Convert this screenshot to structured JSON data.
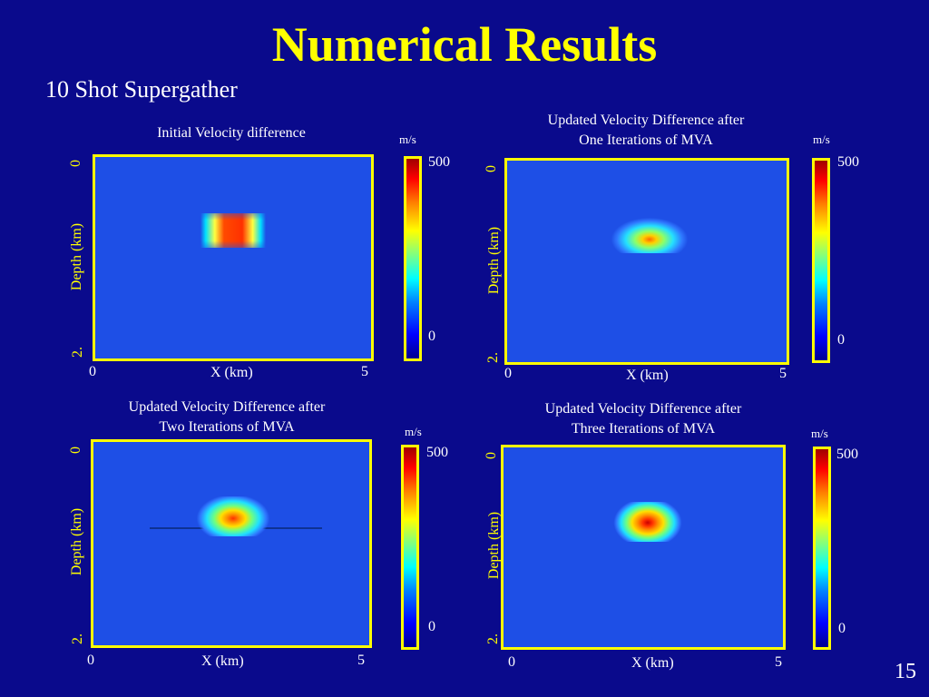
{
  "slide": {
    "title": "Numerical Results",
    "subtitle": "10 Shot Supergather",
    "page_number": "15"
  },
  "panels": [
    {
      "title_line1": "Initial Velocity difference",
      "title_line2": "",
      "ylabel": "Depth (km)",
      "y_top": "0",
      "y_bottom": "2.",
      "xlabel": "X (km)",
      "x_left": "0",
      "x_right": "5",
      "unit": "m/s",
      "cbar_max": "500",
      "cbar_min": "0"
    },
    {
      "title_line1": "Updated Velocity Difference after",
      "title_line2": "One Iterations of MVA",
      "ylabel": "Depth (km)",
      "y_top": "0",
      "y_bottom": "2.",
      "xlabel": "X (km)",
      "x_left": "0",
      "x_right": "5",
      "unit": "m/s",
      "cbar_max": "500",
      "cbar_min": "0"
    },
    {
      "title_line1": "Updated Velocity Difference after",
      "title_line2": "Two Iterations of MVA",
      "ylabel": "Depth (km)",
      "y_top": "0",
      "y_bottom": "2.",
      "xlabel": "X (km)",
      "x_left": "0",
      "x_right": "5",
      "unit": "m/s",
      "cbar_max": "500",
      "cbar_min": "0"
    },
    {
      "title_line1": "Updated Velocity Difference after",
      "title_line2": "Three Iterations of MVA",
      "ylabel": "Depth (km)",
      "y_top": "0",
      "y_bottom": "2.",
      "xlabel": "X (km)",
      "x_left": "0",
      "x_right": "5",
      "unit": "m/s",
      "cbar_max": "500",
      "cbar_min": "0"
    }
  ],
  "colors": {
    "background": "#0a0a8c",
    "title": "#ffff00",
    "frame": "#ffff00",
    "plot_field": "#1e4fe6"
  }
}
